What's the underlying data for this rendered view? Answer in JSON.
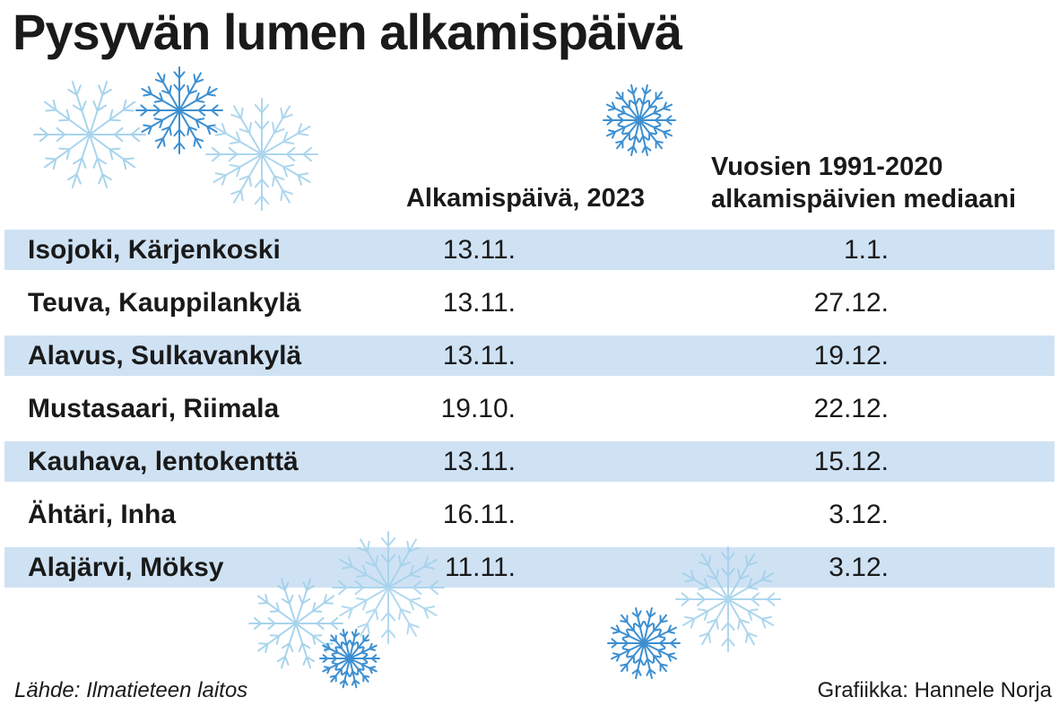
{
  "title": "Pysyvän lumen alkamispäivä",
  "columns": {
    "start_2023": "Alkamispäivä, 2023",
    "median_line1": "Vuosien 1991-2020",
    "median_line2": "alkamispäivien mediaani"
  },
  "chart_data": {
    "type": "table",
    "title": "Pysyvän lumen alkamispäivä",
    "columns": [
      "",
      "Alkamispäivä, 2023",
      "Vuosien 1991-2020 alkamispäivien mediaani"
    ],
    "rows": [
      {
        "place": "Isojoki, Kärjenkoski",
        "start_2023": "13.11.",
        "median": "1.1."
      },
      {
        "place": "Teuva, Kauppilankylä",
        "start_2023": "13.11.",
        "median": "27.12."
      },
      {
        "place": "Alavus, Sulkavankylä",
        "start_2023": "13.11.",
        "median": "19.12."
      },
      {
        "place": "Mustasaari, Riimala",
        "start_2023": "19.10.",
        "median": "22.12."
      },
      {
        "place": "Kauhava, lentokenttä",
        "start_2023": "13.11.",
        "median": "15.12."
      },
      {
        "place": "Ähtäri, Inha",
        "start_2023": "16.11.",
        "median": "3.12."
      },
      {
        "place": "Alajärvi, Möksy",
        "start_2023": "11.11.",
        "median": "3.12."
      }
    ]
  },
  "footer": {
    "source": "Lähde: Ilmatieteen laitos",
    "credit": "Grafiikka: Hannele Norja"
  },
  "colors": {
    "band": "#cfe2f4",
    "flake_dark": "#3d8fd1",
    "flake_light": "#9fd0ea"
  },
  "decorations": [
    "snowflake-icon"
  ]
}
